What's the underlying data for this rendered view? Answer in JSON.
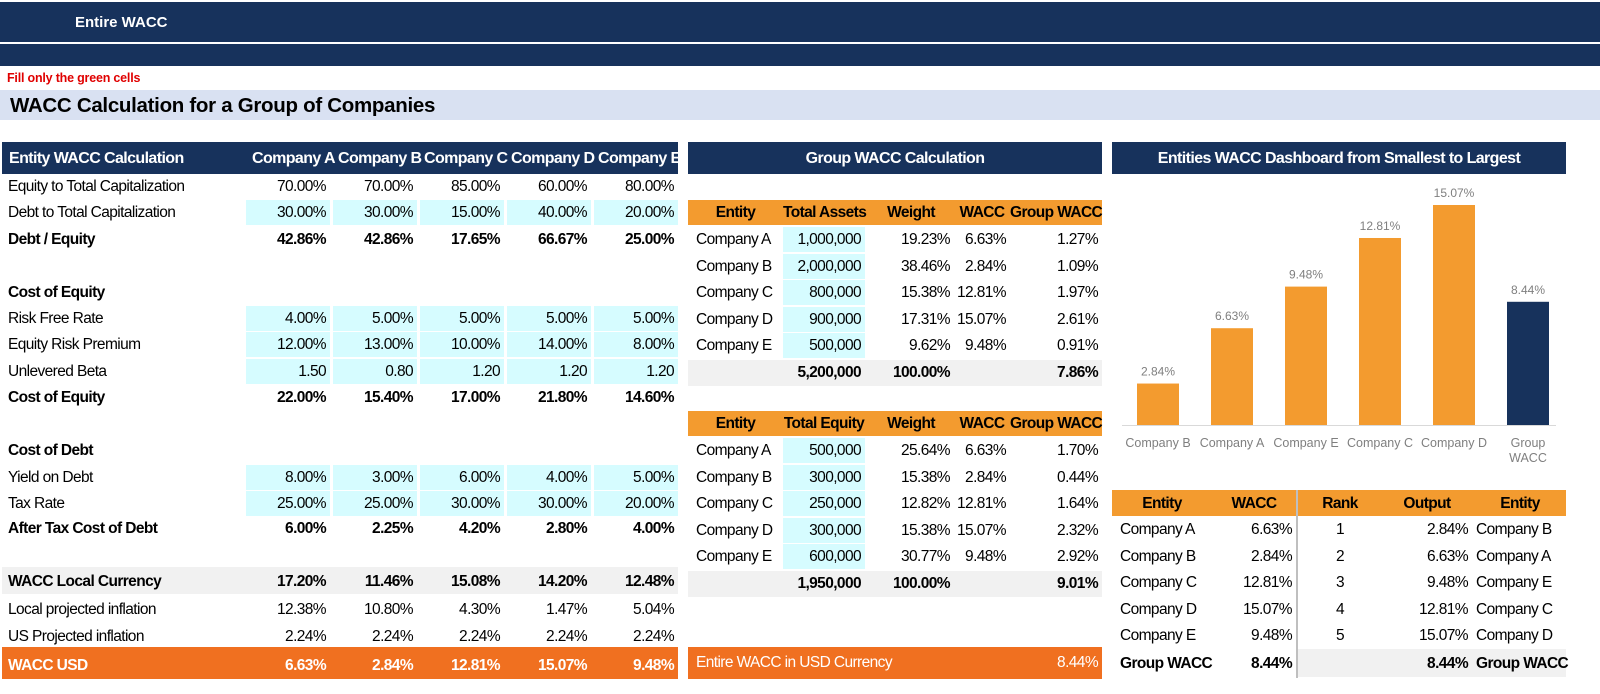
{
  "header": {
    "title": "Entire WACC",
    "note": "Fill only the green cells",
    "main_title": "WACC Calculation for a Group of Companies"
  },
  "entity": {
    "heading": "Entity WACC Calculation",
    "companies": [
      "Company A",
      "Company B",
      "Company C",
      "Company D",
      "Company E"
    ],
    "rows": [
      {
        "label": "Equity to Total Capitalization",
        "values": [
          "70.00%",
          "70.00%",
          "85.00%",
          "60.00%",
          "80.00%"
        ]
      },
      {
        "label": "Debt to Total Capitalization",
        "values": [
          "30.00%",
          "30.00%",
          "15.00%",
          "40.00%",
          "20.00%"
        ]
      },
      {
        "label": "Debt / Equity",
        "values": [
          "42.86%",
          "42.86%",
          "17.65%",
          "66.67%",
          "25.00%"
        ]
      },
      {
        "label": "Cost of Equity",
        "values": []
      },
      {
        "label": "Risk Free Rate",
        "values": [
          "4.00%",
          "5.00%",
          "5.00%",
          "5.00%",
          "5.00%"
        ]
      },
      {
        "label": "Equity Risk Premium",
        "values": [
          "12.00%",
          "13.00%",
          "10.00%",
          "14.00%",
          "8.00%"
        ]
      },
      {
        "label": "Unlevered Beta",
        "values": [
          "1.50",
          "0.80",
          "1.20",
          "1.20",
          "1.20"
        ]
      },
      {
        "label": "Cost of Equity",
        "values": [
          "22.00%",
          "15.40%",
          "17.00%",
          "21.80%",
          "14.60%"
        ]
      },
      {
        "label": "Cost of Debt",
        "values": []
      },
      {
        "label": "Yield on Debt",
        "values": [
          "8.00%",
          "3.00%",
          "6.00%",
          "4.00%",
          "5.00%"
        ]
      },
      {
        "label": "Tax Rate",
        "values": [
          "25.00%",
          "25.00%",
          "30.00%",
          "30.00%",
          "20.00%"
        ]
      },
      {
        "label": "After Tax Cost of Debt",
        "values": [
          "6.00%",
          "2.25%",
          "4.20%",
          "2.80%",
          "4.00%"
        ]
      },
      {
        "label": "WACC Local Currency",
        "values": [
          "17.20%",
          "11.46%",
          "15.08%",
          "14.20%",
          "12.48%"
        ]
      },
      {
        "label": "Local projected inflation",
        "values": [
          "12.38%",
          "10.80%",
          "4.30%",
          "1.47%",
          "5.04%"
        ]
      },
      {
        "label": "US Projected inflation",
        "values": [
          "2.24%",
          "2.24%",
          "2.24%",
          "2.24%",
          "2.24%"
        ]
      },
      {
        "label": "WACC USD",
        "values": [
          "6.63%",
          "2.84%",
          "12.81%",
          "15.07%",
          "9.48%"
        ]
      }
    ]
  },
  "group": {
    "heading": "Group WACC Calculation",
    "assets_table": {
      "headers": [
        "Entity",
        "Total Assets",
        "Weight",
        "WACC",
        "Group WACC"
      ],
      "rows": [
        [
          "Company A",
          "1,000,000",
          "19.23%",
          "6.63%",
          "1.27%"
        ],
        [
          "Company B",
          "2,000,000",
          "38.46%",
          "2.84%",
          "1.09%"
        ],
        [
          "Company C",
          "800,000",
          "15.38%",
          "12.81%",
          "1.97%"
        ],
        [
          "Company D",
          "900,000",
          "17.31%",
          "15.07%",
          "2.61%"
        ],
        [
          "Company E",
          "500,000",
          "9.62%",
          "9.48%",
          "0.91%"
        ]
      ],
      "total": [
        "5,200,000",
        "100.00%",
        "7.86%"
      ]
    },
    "equity_table": {
      "headers": [
        "Entity",
        "Total Equity",
        "Weight",
        "WACC",
        "Group WACC"
      ],
      "rows": [
        [
          "Company A",
          "500,000",
          "25.64%",
          "6.63%",
          "1.70%"
        ],
        [
          "Company B",
          "300,000",
          "15.38%",
          "2.84%",
          "0.44%"
        ],
        [
          "Company C",
          "250,000",
          "12.82%",
          "12.81%",
          "1.64%"
        ],
        [
          "Company D",
          "300,000",
          "15.38%",
          "15.07%",
          "2.32%"
        ],
        [
          "Company E",
          "600,000",
          "30.77%",
          "9.48%",
          "2.92%"
        ]
      ],
      "total": [
        "1,950,000",
        "100.00%",
        "9.01%"
      ]
    },
    "entire_label": "Entire WACC in USD Currency",
    "entire_value": "8.44%"
  },
  "dashboard": {
    "heading": "Entities WACC Dashboard from Smallest to Largest",
    "colors": {
      "orange": "#F39B2F",
      "navy": "#17325C"
    },
    "wacc_table": {
      "headers": [
        "Entity",
        "WACC"
      ],
      "rows": [
        [
          "Company A",
          "6.63%"
        ],
        [
          "Company B",
          "2.84%"
        ],
        [
          "Company C",
          "12.81%"
        ],
        [
          "Company D",
          "15.07%"
        ],
        [
          "Company E",
          "9.48%"
        ]
      ],
      "total": [
        "Group WACC",
        "8.44%"
      ]
    },
    "rank_table": {
      "headers": [
        "Rank",
        "Output",
        "Entity"
      ],
      "rows": [
        [
          "1",
          "2.84%",
          "Company B"
        ],
        [
          "2",
          "6.63%",
          "Company A"
        ],
        [
          "3",
          "9.48%",
          "Company E"
        ],
        [
          "4",
          "12.81%",
          "Company C"
        ],
        [
          "5",
          "15.07%",
          "Company D"
        ]
      ],
      "total": [
        "8.44%",
        "Group WACC"
      ]
    }
  },
  "chart_data": {
    "type": "bar",
    "categories": [
      "Company B",
      "Company A",
      "Company E",
      "Company C",
      "Company D",
      "Group WACC"
    ],
    "values": [
      2.84,
      6.63,
      9.48,
      12.81,
      15.07,
      8.44
    ],
    "labels": [
      "2.84%",
      "6.63%",
      "9.48%",
      "12.81%",
      "15.07%",
      "8.44%"
    ],
    "colors": [
      "#F39B2F",
      "#F39B2F",
      "#F39B2F",
      "#F39B2F",
      "#F39B2F",
      "#17325C"
    ],
    "title": "",
    "xlabel": "",
    "ylabel": "",
    "ylim": [
      0,
      16
    ],
    "grid": false
  }
}
